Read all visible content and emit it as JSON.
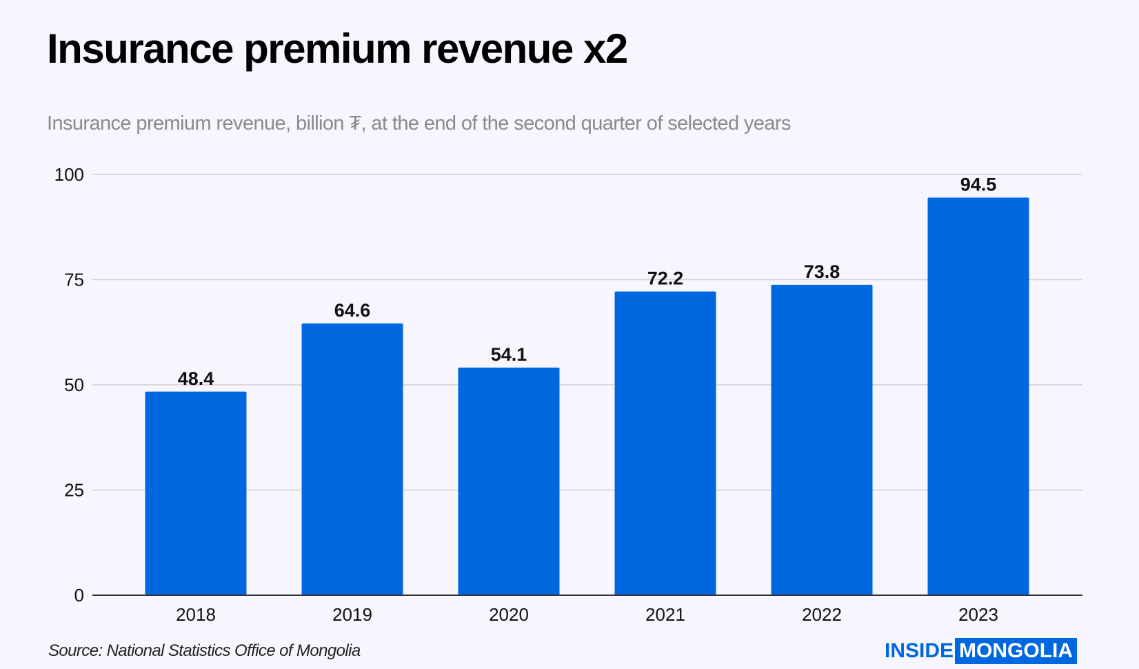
{
  "chart_data": {
    "type": "bar",
    "title": "Insurance premium revenue x2",
    "subtitle": "Insurance premium revenue, billion ₮, at the end of the second quarter of selected years",
    "categories": [
      "2018",
      "2019",
      "2020",
      "2021",
      "2022",
      "2023"
    ],
    "values": [
      48.4,
      64.6,
      54.1,
      72.2,
      73.8,
      94.5
    ],
    "data_labels": [
      "48.4",
      "64.6",
      "54.1",
      "72.2",
      "73.8",
      "94.5"
    ],
    "xlabel": "",
    "ylabel": "",
    "ylim": [
      0,
      100
    ],
    "yticks": [
      0,
      25,
      50,
      75,
      100
    ],
    "grid": true,
    "bar_color": "#0068de",
    "source": "Source: National Statistics Office of Mongolia"
  },
  "logo": {
    "part1": "INSIDE",
    "part2": "MONGOLIA"
  }
}
